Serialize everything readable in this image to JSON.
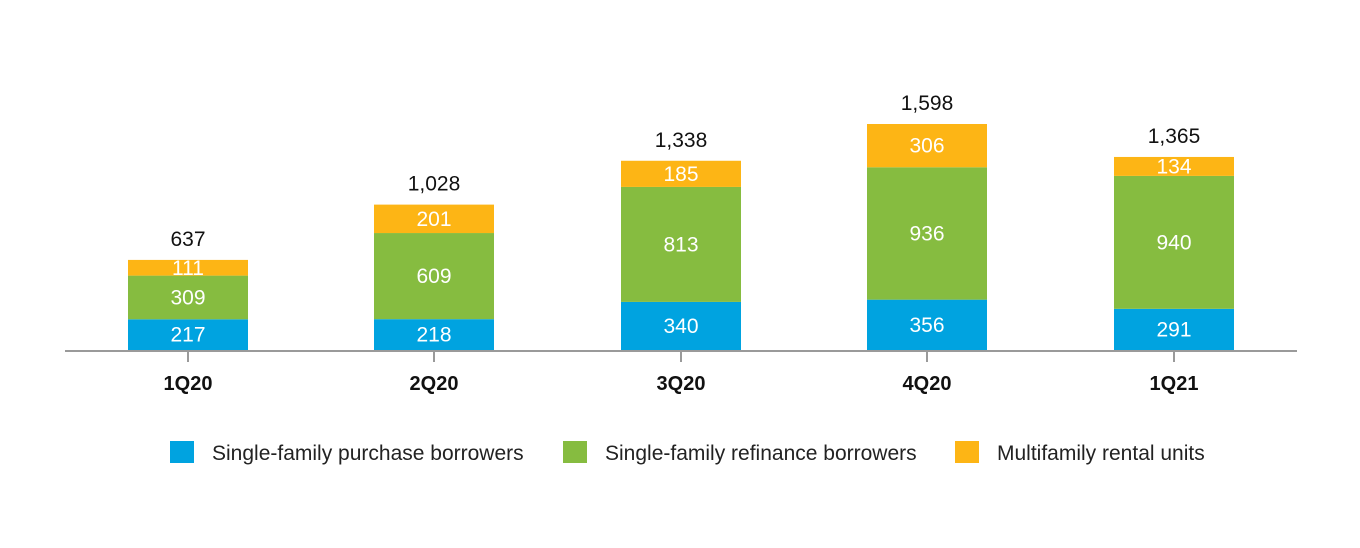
{
  "chart_data": {
    "type": "bar",
    "stacked": true,
    "categories": [
      "1Q20",
      "2Q20",
      "3Q20",
      "4Q20",
      "1Q21"
    ],
    "series": [
      {
        "name": "Single-family purchase borrowers",
        "values": [
          217,
          218,
          340,
          356,
          291
        ],
        "color": "#00a3e0"
      },
      {
        "name": "Single-family refinance borrowers",
        "values": [
          309,
          609,
          813,
          936,
          940
        ],
        "color": "#86bc40"
      },
      {
        "name": "Multifamily rental units",
        "values": [
          111,
          201,
          185,
          306,
          134
        ],
        "color": "#fdb515"
      }
    ],
    "totals": [
      "637",
      "1,028",
      "1,338",
      "1,598",
      "1,365"
    ],
    "ylim": [
      0,
      1600
    ],
    "grid": false,
    "legend_position": "bottom"
  }
}
